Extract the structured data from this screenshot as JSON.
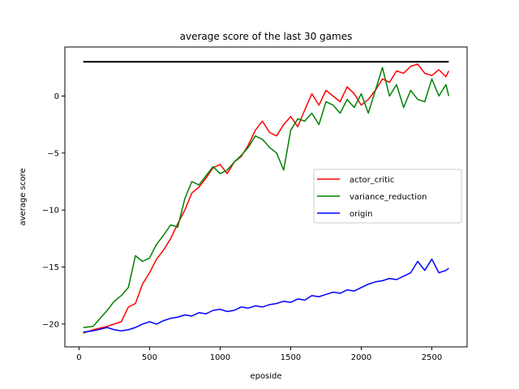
{
  "chart_data": {
    "type": "line",
    "title": "average score of the last 30 games",
    "xlabel": "eposide",
    "ylabel": "average score",
    "xlim": [
      -100,
      2750
    ],
    "ylim": [
      -22,
      4.3
    ],
    "x_ticks": [
      0,
      500,
      1000,
      1500,
      2000,
      2500
    ],
    "y_ticks": [
      -20,
      -15,
      -10,
      -5,
      0
    ],
    "grid": false,
    "legend_position": "center-right",
    "reference_line": {
      "y": 3,
      "x": [
        30,
        2620
      ],
      "color": "#000000"
    },
    "series": [
      {
        "name": "actor_critic",
        "color": "#ff0000",
        "x": [
          30,
          100,
          200,
          300,
          350,
          400,
          450,
          500,
          550,
          600,
          650,
          700,
          750,
          800,
          850,
          900,
          950,
          1000,
          1050,
          1100,
          1150,
          1200,
          1250,
          1300,
          1350,
          1400,
          1450,
          1500,
          1550,
          1600,
          1650,
          1700,
          1750,
          1800,
          1850,
          1900,
          1950,
          2000,
          2050,
          2100,
          2150,
          2200,
          2250,
          2300,
          2350,
          2400,
          2450,
          2500,
          2550,
          2600,
          2620
        ],
        "values": [
          -20.8,
          -20.5,
          -20.2,
          -19.8,
          -18.5,
          -18.2,
          -16.5,
          -15.5,
          -14.3,
          -13.5,
          -12.5,
          -11.2,
          -10.0,
          -8.5,
          -8.0,
          -7.2,
          -6.3,
          -6.0,
          -6.8,
          -5.8,
          -5.3,
          -4.3,
          -3.0,
          -2.2,
          -3.2,
          -3.5,
          -2.5,
          -1.8,
          -2.7,
          -1.2,
          0.2,
          -0.8,
          0.5,
          0.0,
          -0.5,
          0.8,
          0.2,
          -0.8,
          -0.3,
          0.5,
          1.5,
          1.2,
          2.2,
          2.0,
          2.6,
          2.8,
          2.0,
          1.8,
          2.3,
          1.7,
          2.2
        ]
      },
      {
        "name": "variance_reduction",
        "color": "#008000",
        "x": [
          30,
          100,
          150,
          200,
          250,
          300,
          350,
          400,
          450,
          500,
          550,
          600,
          650,
          700,
          750,
          800,
          850,
          900,
          950,
          1000,
          1050,
          1100,
          1150,
          1200,
          1250,
          1300,
          1350,
          1400,
          1450,
          1500,
          1550,
          1600,
          1650,
          1700,
          1750,
          1800,
          1850,
          1900,
          1950,
          2000,
          2050,
          2100,
          2150,
          2200,
          2250,
          2300,
          2350,
          2400,
          2450,
          2500,
          2550,
          2600,
          2620
        ],
        "values": [
          -20.3,
          -20.2,
          -19.5,
          -18.8,
          -18.0,
          -17.5,
          -16.8,
          -14.0,
          -14.5,
          -14.2,
          -13.0,
          -12.2,
          -11.3,
          -11.5,
          -9.0,
          -7.5,
          -7.8,
          -7.0,
          -6.2,
          -6.8,
          -6.5,
          -5.8,
          -5.2,
          -4.5,
          -3.5,
          -3.8,
          -4.5,
          -5.0,
          -6.5,
          -3.0,
          -2.0,
          -2.2,
          -1.5,
          -2.5,
          -0.5,
          -0.8,
          -1.5,
          -0.3,
          -1.0,
          0.2,
          -1.5,
          0.5,
          2.5,
          0.0,
          1.0,
          -1.0,
          0.5,
          -0.3,
          -0.5,
          1.5,
          0.0,
          1.0,
          0.0
        ]
      },
      {
        "name": "origin",
        "color": "#0000ff",
        "x": [
          30,
          100,
          200,
          250,
          300,
          350,
          400,
          450,
          500,
          550,
          600,
          650,
          700,
          750,
          800,
          850,
          900,
          950,
          1000,
          1050,
          1100,
          1150,
          1200,
          1250,
          1300,
          1350,
          1400,
          1450,
          1500,
          1550,
          1600,
          1650,
          1700,
          1750,
          1800,
          1850,
          1900,
          1950,
          2000,
          2050,
          2100,
          2150,
          2200,
          2250,
          2300,
          2350,
          2400,
          2450,
          2500,
          2550,
          2600,
          2620
        ],
        "values": [
          -20.7,
          -20.6,
          -20.3,
          -20.5,
          -20.6,
          -20.5,
          -20.3,
          -20.0,
          -19.8,
          -20.0,
          -19.7,
          -19.5,
          -19.4,
          -19.2,
          -19.3,
          -19.0,
          -19.1,
          -18.8,
          -18.7,
          -18.9,
          -18.8,
          -18.5,
          -18.6,
          -18.4,
          -18.5,
          -18.3,
          -18.2,
          -18.0,
          -18.1,
          -17.8,
          -17.9,
          -17.5,
          -17.6,
          -17.4,
          -17.2,
          -17.3,
          -17.0,
          -17.1,
          -16.8,
          -16.5,
          -16.3,
          -16.2,
          -16.0,
          -16.1,
          -15.8,
          -15.5,
          -14.5,
          -15.3,
          -14.3,
          -15.5,
          -15.3,
          -15.1
        ]
      }
    ]
  }
}
